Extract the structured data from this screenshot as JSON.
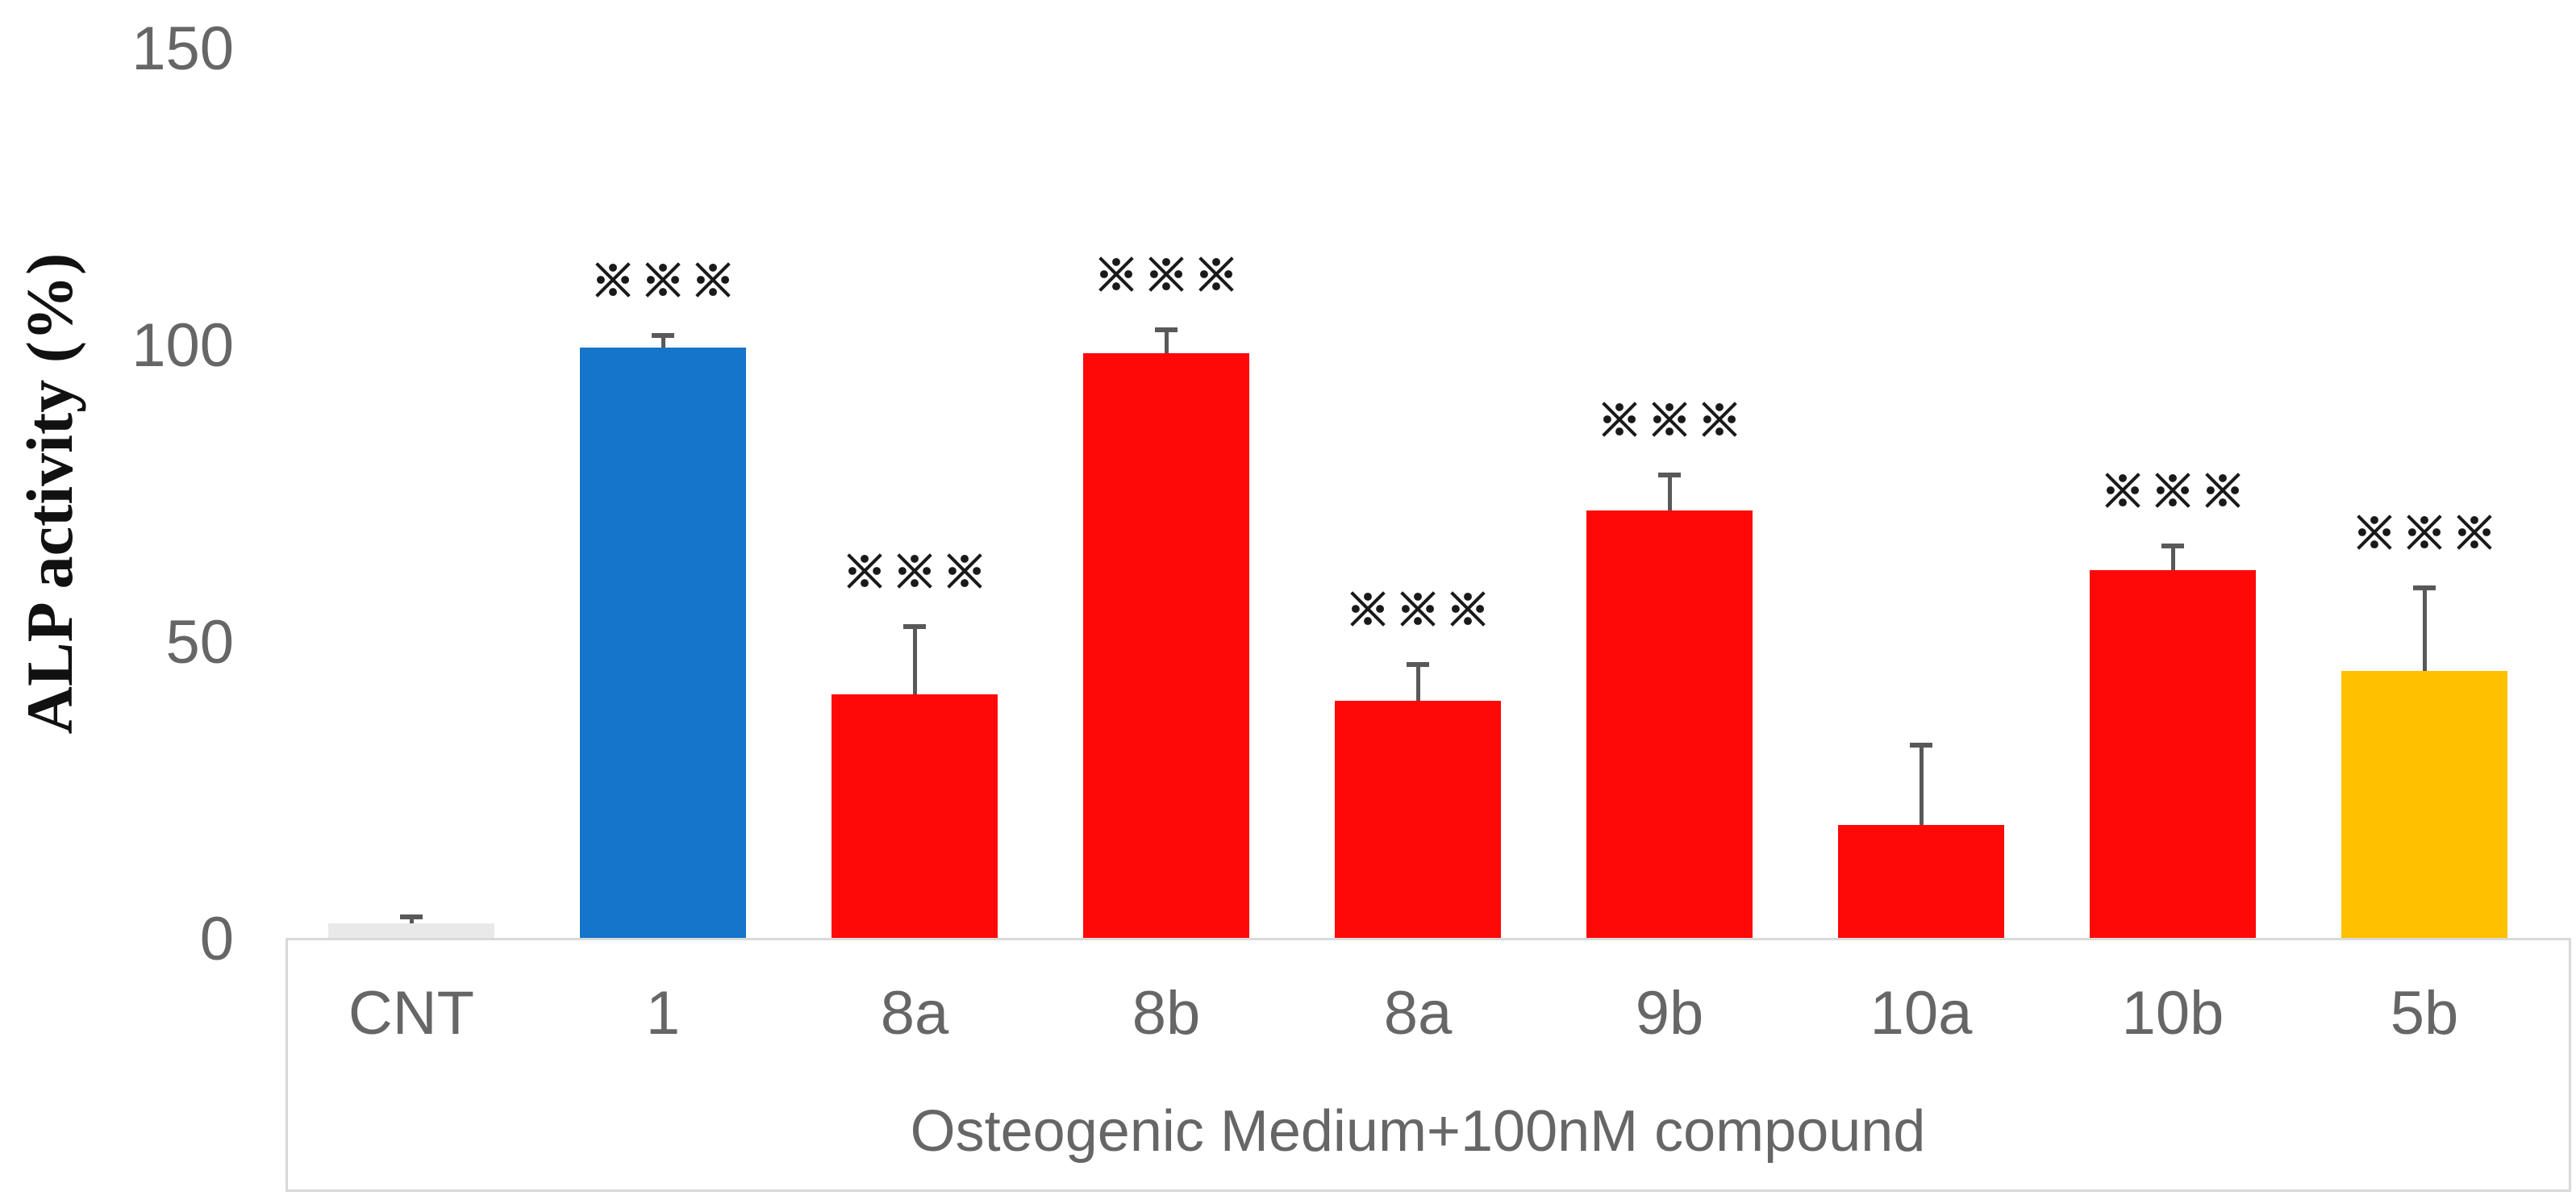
{
  "chart_data": {
    "type": "bar",
    "title": "",
    "xlabel": "Osteogenic Medium+100nM compound",
    "ylabel": "ALP activity (%)",
    "ylim": [
      0,
      150
    ],
    "ytick_values": [
      0,
      50,
      100,
      150
    ],
    "ytick_labels": [
      "0",
      "50",
      "100",
      "150"
    ],
    "categories": [
      "CNT",
      "1",
      "8a",
      "8b",
      "8a",
      "9b",
      "10a",
      "10b",
      "5b"
    ],
    "values": [
      2.5,
      99.5,
      41,
      98.5,
      40,
      72,
      19,
      62,
      45
    ],
    "errors_plus": [
      1,
      2,
      11.5,
      4,
      6,
      6,
      13.5,
      4,
      14
    ],
    "annotations": [
      "",
      "※※※",
      "※※※",
      "※※※",
      "※※※",
      "※※※",
      "",
      "※※※",
      "※※※"
    ],
    "annotation_glyph_name": "reference-mark",
    "bar_colors": [
      "#E9E9E9",
      "#1575CB",
      "#FE0808",
      "#FE0808",
      "#FE0808",
      "#FE0808",
      "#FE0808",
      "#FE0808",
      "#FFC000"
    ],
    "error_bar_color": "#595959",
    "axis_line_color": "#D9D9D9",
    "text_color": "#666666",
    "annotation_color": "#1A1A1A",
    "grid": false,
    "legend": null
  }
}
